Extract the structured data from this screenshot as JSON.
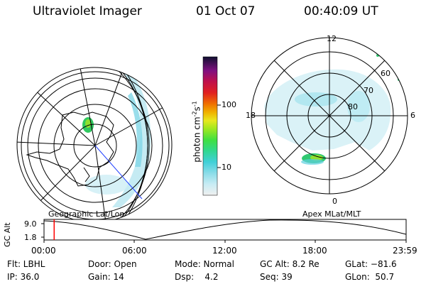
{
  "header": {
    "title": "Ultraviolet Imager",
    "date": "01 Oct 07",
    "time": "00:40:09 UT"
  },
  "colorbar": {
    "label": "photon cm",
    "label_sup1": "-2",
    "label_mid": "s",
    "label_sup2": "-1",
    "ticks": [
      "100",
      "10"
    ]
  },
  "polar_plot": {
    "mlt_labels": {
      "top": "12",
      "left": "18",
      "right": "6",
      "bottom": "0"
    },
    "lat_labels": [
      "60",
      "70",
      "80"
    ]
  },
  "map_captions": {
    "left": "Geographic Lat/Lon",
    "right": "Apex MLat/MLT"
  },
  "altitude_panel": {
    "axis_label": "GC Alt",
    "y_ticks": [
      "9.0",
      "1.8"
    ],
    "x_ticks": [
      "00:00",
      "06:00",
      "12:00",
      "18:00",
      "23:59"
    ],
    "current_time_fraction": 0.028,
    "line_color": "#ff0000"
  },
  "status": {
    "flt": "Flt: LBHL",
    "ip": "IP: 36.0",
    "door": "Door: Open",
    "gain": "Gain: 14",
    "mode": "Mode: Normal",
    "dsp": "Dsp:    4.2",
    "gc_alt": "GC Alt: 8.2 Re",
    "seq": "Seq: 39",
    "glat": "GLat: −81.6",
    "glon": "GLon:  50.7"
  }
}
